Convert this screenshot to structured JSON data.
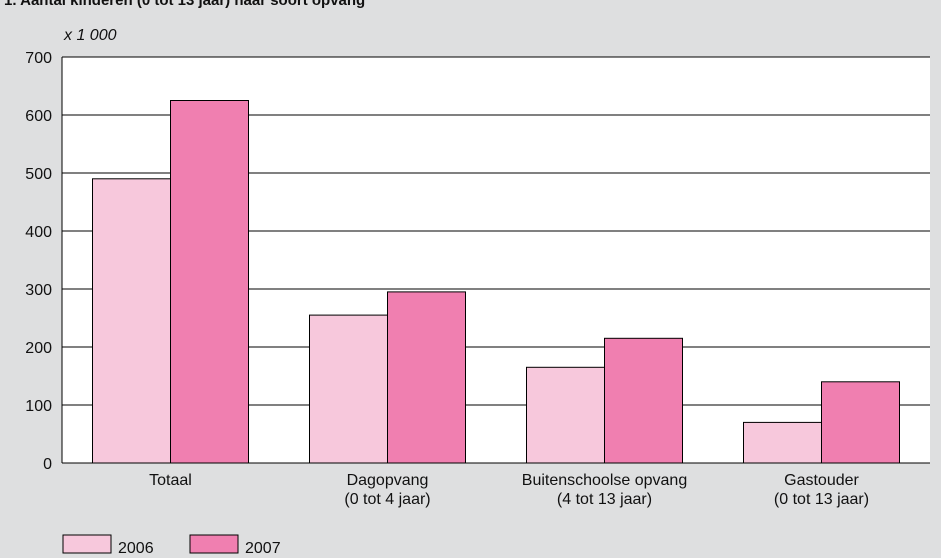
{
  "chart_data": {
    "type": "bar",
    "title": "1.  Aantal kinderen (0 tot 13 jaar) naar soort opvang",
    "unit_label": "x 1 000",
    "categories": [
      "Totaal",
      "Dagopvang\n(0 tot 4 jaar)",
      "Buitenschoolse opvang\n(4 tot 13 jaar)",
      "Gastouder\n(0 tot 13 jaar)"
    ],
    "series": [
      {
        "name": "2006",
        "color": "#f7c8dc",
        "values": [
          490,
          255,
          165,
          70
        ]
      },
      {
        "name": "2007",
        "color": "#f07fb0",
        "values": [
          625,
          295,
          215,
          140
        ]
      }
    ],
    "ylim": [
      0,
      700
    ],
    "yticks": [
      0,
      100,
      200,
      300,
      400,
      500,
      600,
      700
    ],
    "grid": true
  }
}
